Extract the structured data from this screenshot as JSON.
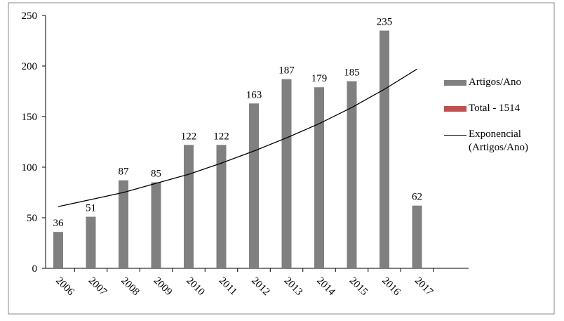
{
  "chart_data": {
    "type": "bar",
    "categories": [
      "2006",
      "2007",
      "2008",
      "2009",
      "2010",
      "2011",
      "2012",
      "2013",
      "2014",
      "2015",
      "2016",
      "2017"
    ],
    "series": [
      {
        "name": "Artigos/Ano",
        "type": "bar",
        "color": "#808080",
        "values": [
          36,
          51,
          87,
          85,
          122,
          122,
          163,
          187,
          179,
          185,
          235,
          62
        ]
      },
      {
        "name": "Exponencial (Artigos/Ano)",
        "type": "line",
        "color": "#000000",
        "values": [
          61,
          68,
          75,
          84,
          93,
          104,
          116,
          129,
          143,
          159,
          177,
          197
        ]
      }
    ],
    "legend_extra": [
      {
        "name": "Total - 1514",
        "color": "#c0504d"
      }
    ],
    "ylim": [
      0,
      250
    ],
    "yticks": [
      0,
      50,
      100,
      150,
      200,
      250
    ],
    "grid": false,
    "legend": "right"
  }
}
